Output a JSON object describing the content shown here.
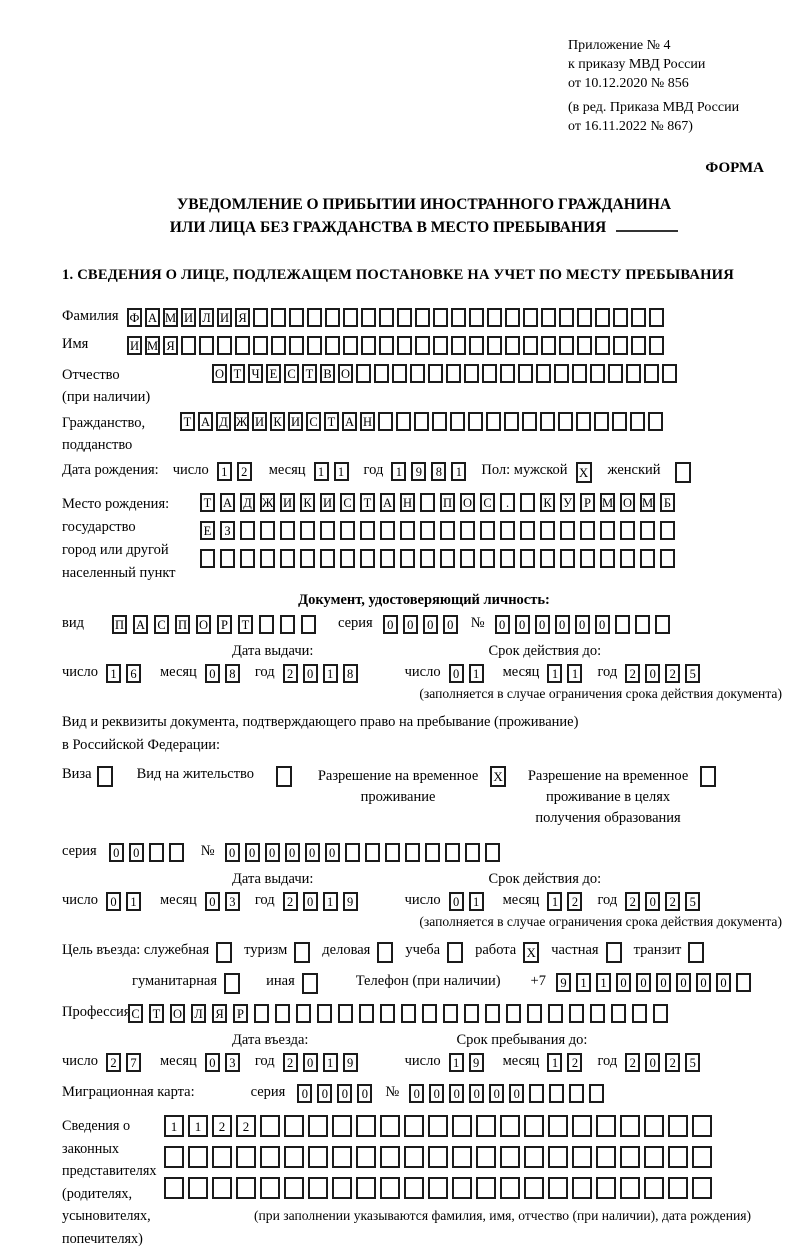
{
  "header": {
    "lines": [
      "Приложение № 4",
      "к приказу МВД России",
      "от 10.12.2020 № 856"
    ],
    "amendment": [
      "(в ред. Приказа МВД России",
      "от 16.11.2022 № 867)"
    ],
    "forma": "ФОРМА"
  },
  "title": {
    "line1": "УВЕДОМЛЕНИЕ О ПРИБЫТИИ ИНОСТРАННОГО ГРАЖДАНИНА",
    "line2": "ИЛИ ЛИЦА БЕЗ ГРАЖДАНСТВА В МЕСТО ПРЕБЫВАНИЯ"
  },
  "section1": {
    "heading": "1. СВЕДЕНИЯ О ЛИЦЕ, ПОДЛЕЖАЩЕМ ПОСТАНОВКЕ НА УЧЕТ ПО МЕСТУ ПРЕБЫВАНИЯ"
  },
  "date_labels": {
    "day": "число",
    "month": "месяц",
    "year": "год"
  },
  "surname": {
    "label": "Фамилия",
    "cells": {
      "chars": "ФАМИЛИЯ",
      "total": 30,
      "gap": 3
    }
  },
  "firstname": {
    "label": "Имя",
    "cells": {
      "chars": "ИМЯ",
      "total": 30,
      "gap": 3
    }
  },
  "patronymic": {
    "label": "Отчество",
    "sublabel": "(при наличии)",
    "cells": {
      "chars": "ОТЧЕСТВО",
      "total": 26,
      "gap": 3
    }
  },
  "citizenship": {
    "label": "Гражданство,",
    "sublabel": "подданство",
    "cells": {
      "chars": "ТАДЖИКИСТАН",
      "total": 27,
      "gap": 3
    }
  },
  "birth_date": {
    "label": "Дата рождения:",
    "day": {
      "chars": "12",
      "total": 2,
      "gap": 5
    },
    "month": {
      "chars": "11",
      "total": 2,
      "gap": 5
    },
    "year": {
      "chars": "1981",
      "total": 4,
      "gap": 5
    }
  },
  "sex": {
    "label": "Пол: мужской",
    "male_checked": "X",
    "female_label": "женский",
    "female_checked": ""
  },
  "birth_place": {
    "label_lines": [
      "Место рождения:",
      "государство",
      "город или другой",
      "населенный пункт"
    ],
    "rows": [
      {
        "chars": "ТАДЖИКИСТАН ПОС. КУРМОМБ",
        "total": 24,
        "gap": 5
      },
      {
        "chars": "ЕЗ",
        "total": 24,
        "gap": 5
      },
      {
        "chars": "",
        "total": 24,
        "gap": 5
      }
    ]
  },
  "identity_doc": {
    "heading": "Документ, удостоверяющий личность:",
    "type_label": "вид",
    "type": {
      "chars": "ПАСПОРТ",
      "total": 10,
      "gap": 6
    },
    "series_label": "серия",
    "series": {
      "chars": "0000",
      "total": 4,
      "gap": 5
    },
    "number_label": "№",
    "number": {
      "chars": "000000",
      "total": 9,
      "gap": 5
    },
    "issue_title": "Дата выдачи:",
    "issue": {
      "day": {
        "chars": "16",
        "total": 2,
        "gap": 5
      },
      "month": {
        "chars": "08",
        "total": 2,
        "gap": 5
      },
      "year": {
        "chars": "2018",
        "total": 4,
        "gap": 5
      }
    },
    "valid_title": "Срок действия до:",
    "valid": {
      "day": {
        "chars": "01",
        "total": 2,
        "gap": 5
      },
      "month": {
        "chars": "11",
        "total": 2,
        "gap": 5
      },
      "year": {
        "chars": "2025",
        "total": 4,
        "gap": 5
      }
    },
    "note": "(заполняется в случае ограничения срока действия документа)"
  },
  "residence_doc": {
    "line1": "Вид и реквизиты документа, подтверждающего право на пребывание (проживание)",
    "line2": "в Российской Федерации:",
    "options": [
      {
        "label": "Виза",
        "checked": ""
      },
      {
        "label": "Вид на жительство",
        "checked": ""
      },
      {
        "label": "Разрешение на временное проживание",
        "checked": "X"
      },
      {
        "label": "Разрешение на временное проживание в целях получения образования",
        "checked": ""
      }
    ],
    "series_label": "серия",
    "series": {
      "chars": "00",
      "total": 4,
      "gap": 5
    },
    "number_label": "№",
    "number": {
      "chars": "000000",
      "total": 14,
      "gap": 5
    },
    "issue_title": "Дата выдачи:",
    "issue": {
      "day": {
        "chars": "01",
        "total": 2,
        "gap": 5
      },
      "month": {
        "chars": "03",
        "total": 2,
        "gap": 5
      },
      "year": {
        "chars": "2019",
        "total": 4,
        "gap": 5
      }
    },
    "valid_title": "Срок действия до:",
    "valid": {
      "day": {
        "chars": "01",
        "total": 2,
        "gap": 5
      },
      "month": {
        "chars": "12",
        "total": 2,
        "gap": 5
      },
      "year": {
        "chars": "2025",
        "total": 4,
        "gap": 5
      }
    },
    "note": "(заполняется в случае ограничения срока действия документа)"
  },
  "purpose": {
    "label": "Цель въезда: служебная",
    "row1": [
      {
        "label": "туризм",
        "checked": ""
      },
      {
        "label": "деловая",
        "checked": ""
      },
      {
        "label": "учеба",
        "checked": ""
      },
      {
        "label": "работа",
        "checked": "X"
      },
      {
        "label": "частная",
        "checked": ""
      },
      {
        "label": "транзит",
        "checked": ""
      }
    ],
    "first_checked": "",
    "row2": [
      {
        "label": "гуманитарная",
        "checked": ""
      },
      {
        "label": "иная",
        "checked": ""
      }
    ],
    "phone_label": "Телефон (при наличии)",
    "phone_prefix": "+7",
    "phone": {
      "chars": "911000000",
      "total": 10,
      "gap": 5
    }
  },
  "profession": {
    "label": "Профессия",
    "cells": {
      "chars": "СТОЛЯР",
      "total": 26,
      "gap": 6
    }
  },
  "entry": {
    "date_title": "Дата въезда:",
    "date": {
      "day": {
        "chars": "27",
        "total": 2,
        "gap": 5
      },
      "month": {
        "chars": "03",
        "total": 2,
        "gap": 5
      },
      "year": {
        "chars": "2019",
        "total": 4,
        "gap": 5
      }
    },
    "stay_title": "Срок пребывания до:",
    "stay": {
      "day": {
        "chars": "19",
        "total": 2,
        "gap": 5
      },
      "month": {
        "chars": "12",
        "total": 2,
        "gap": 5
      },
      "year": {
        "chars": "2025",
        "total": 4,
        "gap": 5
      }
    }
  },
  "migration_card": {
    "label": "Миграционная карта:",
    "series_label": "серия",
    "series": {
      "chars": "0000",
      "total": 4,
      "gap": 5
    },
    "number_label": "№",
    "number": {
      "chars": "000000",
      "total": 10,
      "gap": 5
    }
  },
  "representatives": {
    "label_lines": [
      "Сведения о",
      "законных",
      "представителях",
      "(родителях,",
      "усыновителях,",
      "попечителях)"
    ],
    "rows": [
      {
        "chars": "1122",
        "total": 23,
        "gap": 4,
        "big": true
      },
      {
        "chars": "",
        "total": 23,
        "gap": 4,
        "big": true
      },
      {
        "chars": "",
        "total": 23,
        "gap": 4,
        "big": true
      }
    ],
    "note": "(при заполнении указываются фамилия, имя, отчество (при наличии), дата рождения)"
  }
}
